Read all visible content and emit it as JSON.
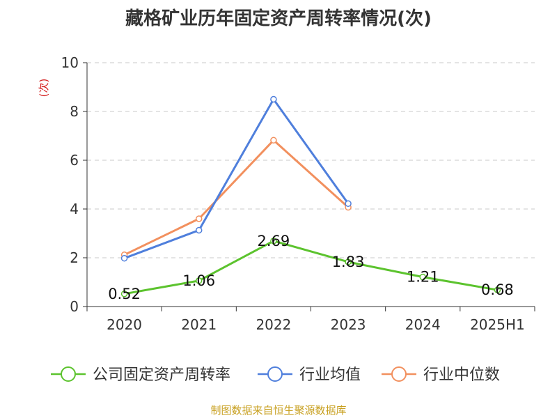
{
  "chart_data": {
    "type": "line",
    "title": "藏格矿业历年固定资产周转率情况(次)",
    "ylabel": "(次)",
    "xlabel": "",
    "categories": [
      "2020",
      "2021",
      "2022",
      "2023",
      "2024",
      "2025H1"
    ],
    "ylim": [
      0,
      10
    ],
    "yticks": [
      0,
      2,
      4,
      6,
      8,
      10
    ],
    "grid": true,
    "legend_position": "bottom",
    "series": [
      {
        "name": "公司固定资产周转率",
        "color": "#5cc32e",
        "values": [
          0.52,
          1.06,
          2.69,
          1.83,
          1.21,
          0.68
        ],
        "labels": [
          "0.52",
          "1.06",
          "2.69",
          "1.83",
          "1.21",
          "0.68"
        ]
      },
      {
        "name": "行业均值",
        "color": "#4f7fdc",
        "values": [
          1.98,
          3.13,
          8.5,
          4.22,
          null,
          null
        ]
      },
      {
        "name": "行业中位数",
        "color": "#f2905e",
        "values": [
          2.12,
          3.6,
          6.82,
          4.07,
          null,
          null
        ]
      }
    ]
  },
  "source": "制图数据来自恒生聚源数据库"
}
